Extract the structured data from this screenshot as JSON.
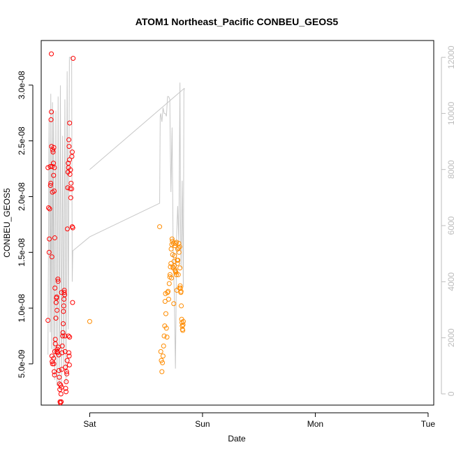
{
  "chart_data": {
    "type": "scatter",
    "title": "ATOM1 Northeast_Pacific CONBEU_GEOS5",
    "xlabel": "Date",
    "ylabel": "CONBEU_GEOS5",
    "x_ticks": [
      "Sat",
      "Sun",
      "Mon",
      "Tue"
    ],
    "y_ticks": [
      "5.0e-09",
      "1.0e-08",
      "1.5e-08",
      "2.0e-08",
      "2.5e-08",
      "3.0e-08"
    ],
    "y2_ticks": [
      "0",
      "2000",
      "4000",
      "6000",
      "8000",
      "10000",
      "12000"
    ],
    "xlim_days": [
      -0.43,
      3.05
    ],
    "ylim": [
      1.3e-09,
      3.4e-08
    ],
    "y2lim": [
      -400,
      12600
    ],
    "colors": {
      "red": "#ff0000",
      "orange": "#ff8c00",
      "altitude": "#c8c8c8"
    },
    "series": [
      {
        "color": "red",
        "points": [
          [
            -0.37,
            2.26e-08
          ],
          [
            -0.37,
            8.9e-09
          ],
          [
            -0.365,
            1.9e-08
          ],
          [
            -0.36,
            1.5e-08
          ],
          [
            -0.358,
            1.62e-08
          ],
          [
            -0.355,
            1.89e-08
          ],
          [
            -0.35,
            2.27e-08
          ],
          [
            -0.348,
            2.1e-08
          ],
          [
            -0.345,
            2.12e-08
          ],
          [
            -0.343,
            2.69e-08
          ],
          [
            -0.34,
            2.76e-08
          ],
          [
            -0.34,
            3.28e-08
          ],
          [
            -0.338,
            2.45e-08
          ],
          [
            -0.335,
            1.46e-08
          ],
          [
            -0.333,
            2.27e-08
          ],
          [
            -0.33,
            2.04e-08
          ],
          [
            -0.328,
            2.42e-08
          ],
          [
            -0.325,
            2.4e-08
          ],
          [
            -0.322,
            2.3e-08
          ],
          [
            -0.32,
            2.19e-08
          ],
          [
            -0.318,
            2.44e-08
          ],
          [
            -0.315,
            2.05e-08
          ],
          [
            -0.313,
            2.26e-08
          ],
          [
            -0.31,
            1.63e-08
          ],
          [
            -0.308,
            1.18e-08
          ],
          [
            -0.335,
            5.7e-09
          ],
          [
            -0.333,
            5.2e-09
          ],
          [
            -0.33,
            5e-09
          ],
          [
            -0.32,
            5.5e-09
          ],
          [
            -0.318,
            5e-09
          ],
          [
            -0.315,
            4.3e-09
          ],
          [
            -0.312,
            4e-09
          ],
          [
            -0.31,
            6.1e-09
          ],
          [
            -0.305,
            7.2e-09
          ],
          [
            -0.305,
            6.8e-09
          ],
          [
            -0.3,
            9.1e-09
          ],
          [
            -0.298,
            1.05e-08
          ],
          [
            -0.295,
            1.09e-08
          ],
          [
            -0.293,
            1.1e-08
          ],
          [
            -0.29,
            9.8e-09
          ],
          [
            -0.29,
            6.1e-09
          ],
          [
            -0.288,
            6.3e-09
          ],
          [
            -0.285,
            6e-09
          ],
          [
            -0.282,
            1.26e-08
          ],
          [
            -0.28,
            1.24e-08
          ],
          [
            -0.278,
            6.5e-09
          ],
          [
            -0.275,
            5.8e-09
          ],
          [
            -0.273,
            4.4e-09
          ],
          [
            -0.27,
            3.8e-09
          ],
          [
            -0.268,
            3.2e-09
          ],
          [
            -0.265,
            2.7e-09
          ],
          [
            -0.263,
            1.6e-09
          ],
          [
            -0.26,
            1.5e-09
          ],
          [
            -0.258,
            3.1e-09
          ],
          [
            -0.255,
            2.3e-09
          ],
          [
            -0.253,
            1.6e-09
          ],
          [
            -0.25,
            2.9e-09
          ],
          [
            -0.25,
            1.14e-08
          ],
          [
            -0.248,
            4.5e-09
          ],
          [
            -0.245,
            6e-09
          ],
          [
            -0.243,
            6.6e-09
          ],
          [
            -0.24,
            7.5e-09
          ],
          [
            -0.238,
            7.8e-09
          ],
          [
            -0.235,
            8.6e-09
          ],
          [
            -0.233,
            9.7e-09
          ],
          [
            -0.23,
            1.02e-08
          ],
          [
            -0.228,
            1.08e-08
          ],
          [
            -0.225,
            1.14e-08
          ],
          [
            -0.225,
            1.16e-08
          ],
          [
            -0.222,
            1.12e-08
          ],
          [
            -0.22,
            7.5e-09
          ],
          [
            -0.218,
            6.1e-09
          ],
          [
            -0.215,
            4.7e-09
          ],
          [
            -0.213,
            2.8e-09
          ],
          [
            -0.21,
            2.5e-09
          ],
          [
            -0.208,
            3.4e-09
          ],
          [
            -0.205,
            4.3e-09
          ],
          [
            -0.203,
            4.1e-09
          ],
          [
            -0.2,
            5.3e-09
          ],
          [
            -0.198,
            1.71e-08
          ],
          [
            -0.195,
            2.08e-08
          ],
          [
            -0.193,
            2.22e-08
          ],
          [
            -0.19,
            2.3e-08
          ],
          [
            -0.188,
            2.26e-08
          ],
          [
            -0.185,
            2.51e-08
          ],
          [
            -0.183,
            2.45e-08
          ],
          [
            -0.18,
            2.33e-08
          ],
          [
            -0.178,
            2.66e-08
          ],
          [
            -0.175,
            2.2e-08
          ],
          [
            -0.173,
            2.07e-08
          ],
          [
            -0.17,
            2.24e-08
          ],
          [
            -0.168,
            1.99e-08
          ],
          [
            -0.165,
            2.12e-08
          ],
          [
            -0.16,
            2.07e-08
          ],
          [
            -0.158,
            2.36e-08
          ],
          [
            -0.155,
            2.4e-08
          ],
          [
            -0.155,
            1.73e-08
          ],
          [
            -0.15,
            1.72e-08
          ],
          [
            -0.152,
            1.05e-08
          ],
          [
            -0.147,
            3.24e-08
          ],
          [
            -0.188,
            7.5e-09
          ],
          [
            -0.185,
            6e-09
          ],
          [
            -0.182,
            5.7e-09
          ],
          [
            -0.18,
            4.9e-09
          ],
          [
            -0.178,
            7.4e-09
          ]
        ]
      },
      {
        "color": "orange",
        "points": [
          [
            0.0,
            8.8e-09
          ],
          [
            0.62,
            1.73e-08
          ],
          [
            0.63,
            6.1e-09
          ],
          [
            0.635,
            5.3e-09
          ],
          [
            0.64,
            4.3e-09
          ],
          [
            0.645,
            5.1e-09
          ],
          [
            0.65,
            5.7e-09
          ],
          [
            0.655,
            6.6e-09
          ],
          [
            0.66,
            7.5e-09
          ],
          [
            0.665,
            8.4e-09
          ],
          [
            0.668,
            1.06e-08
          ],
          [
            0.672,
            1.13e-08
          ],
          [
            0.675,
            9.5e-09
          ],
          [
            0.68,
            8.2e-09
          ],
          [
            0.685,
            7.4e-09
          ],
          [
            0.69,
            1.14e-08
          ],
          [
            0.695,
            1.15e-08
          ],
          [
            0.7,
            1.08e-08
          ],
          [
            0.705,
            1.22e-08
          ],
          [
            0.71,
            1.28e-08
          ],
          [
            0.712,
            1.3e-08
          ],
          [
            0.715,
            1.37e-08
          ],
          [
            0.72,
            1.4e-08
          ],
          [
            0.722,
            1.53e-08
          ],
          [
            0.725,
            1.27e-08
          ],
          [
            0.728,
            1.57e-08
          ],
          [
            0.73,
            1.62e-08
          ],
          [
            0.733,
            1.6e-08
          ],
          [
            0.735,
            1.48e-08
          ],
          [
            0.738,
            1.37e-08
          ],
          [
            0.74,
            1.36e-08
          ],
          [
            0.742,
            1.58e-08
          ],
          [
            0.745,
            1.04e-08
          ],
          [
            0.748,
            1.42e-08
          ],
          [
            0.75,
            1.38e-08
          ],
          [
            0.752,
            1.47e-08
          ],
          [
            0.755,
            1.56e-08
          ],
          [
            0.758,
            1.34e-08
          ],
          [
            0.76,
            1.33e-08
          ],
          [
            0.762,
            1.58e-08
          ],
          [
            0.765,
            1.32e-08
          ],
          [
            0.768,
            1.3e-08
          ],
          [
            0.77,
            1.59e-08
          ],
          [
            0.772,
            1.16e-08
          ],
          [
            0.775,
            1.43e-08
          ],
          [
            0.778,
            1.4e-08
          ],
          [
            0.78,
            1.53e-08
          ],
          [
            0.782,
            1.43e-08
          ],
          [
            0.785,
            1.3e-08
          ],
          [
            0.788,
            1.54e-08
          ],
          [
            0.79,
            1.58e-08
          ],
          [
            0.792,
            1.5e-08
          ],
          [
            0.795,
            1.18e-08
          ],
          [
            0.798,
            1.55e-08
          ],
          [
            0.8,
            1.36e-08
          ],
          [
            0.802,
            1.2e-08
          ],
          [
            0.805,
            1.18e-08
          ],
          [
            0.808,
            1.14e-08
          ],
          [
            0.81,
            1.15e-08
          ],
          [
            0.812,
            1.02e-08
          ],
          [
            0.815,
            9e-09
          ],
          [
            0.818,
            8.7e-09
          ],
          [
            0.82,
            8.4e-09
          ],
          [
            0.822,
            8.1e-09
          ],
          [
            0.825,
            8e-09
          ],
          [
            0.827,
            8.5e-09
          ],
          [
            0.83,
            8.8e-09
          ]
        ]
      }
    ],
    "altitude_line": [
      [
        -0.37,
        1400
      ],
      [
        -0.36,
        9800
      ],
      [
        -0.35,
        2200
      ],
      [
        -0.345,
        10700
      ],
      [
        -0.34,
        1600
      ],
      [
        -0.33,
        10400
      ],
      [
        -0.325,
        1500
      ],
      [
        -0.32,
        10100
      ],
      [
        -0.31,
        500
      ],
      [
        -0.3,
        10100
      ],
      [
        -0.29,
        300
      ],
      [
        -0.28,
        10600
      ],
      [
        -0.27,
        200
      ],
      [
        -0.26,
        11000
      ],
      [
        -0.25,
        300
      ],
      [
        -0.24,
        9200
      ],
      [
        -0.23,
        900
      ],
      [
        -0.22,
        10500
      ],
      [
        -0.21,
        400
      ],
      [
        -0.2,
        11500
      ],
      [
        -0.19,
        2300
      ],
      [
        -0.18,
        12000
      ],
      [
        -0.17,
        12000
      ],
      [
        -0.16,
        12000
      ],
      [
        -0.155,
        4000
      ],
      [
        -0.15,
        5100
      ],
      [
        0.0,
        5600
      ],
      [
        0.62,
        6800
      ],
      [
        0.625,
        9900
      ],
      [
        0.63,
        10000
      ],
      [
        0.64,
        9700
      ],
      [
        0.65,
        10200
      ],
      [
        0.66,
        10000
      ],
      [
        0.67,
        10000
      ],
      [
        0.68,
        9900
      ],
      [
        0.69,
        10600
      ],
      [
        0.7,
        10600
      ],
      [
        0.71,
        10500
      ],
      [
        0.715,
        8600
      ],
      [
        0.72,
        7200
      ],
      [
        0.73,
        9500
      ],
      [
        0.74,
        5100
      ],
      [
        0.75,
        3500
      ],
      [
        0.76,
        900
      ],
      [
        0.765,
        2800
      ],
      [
        0.77,
        5600
      ],
      [
        0.78,
        6700
      ],
      [
        0.79,
        5400
      ],
      [
        0.8,
        11100
      ],
      [
        0.805,
        6200
      ],
      [
        0.81,
        4500
      ],
      [
        0.82,
        7600
      ],
      [
        0.83,
        3800
      ],
      [
        0.835,
        10800
      ],
      [
        0.84,
        10900
      ]
    ],
    "altitude_line_extra": [
      [
        0.0,
        8000
      ],
      [
        0.84,
        10900
      ]
    ]
  }
}
